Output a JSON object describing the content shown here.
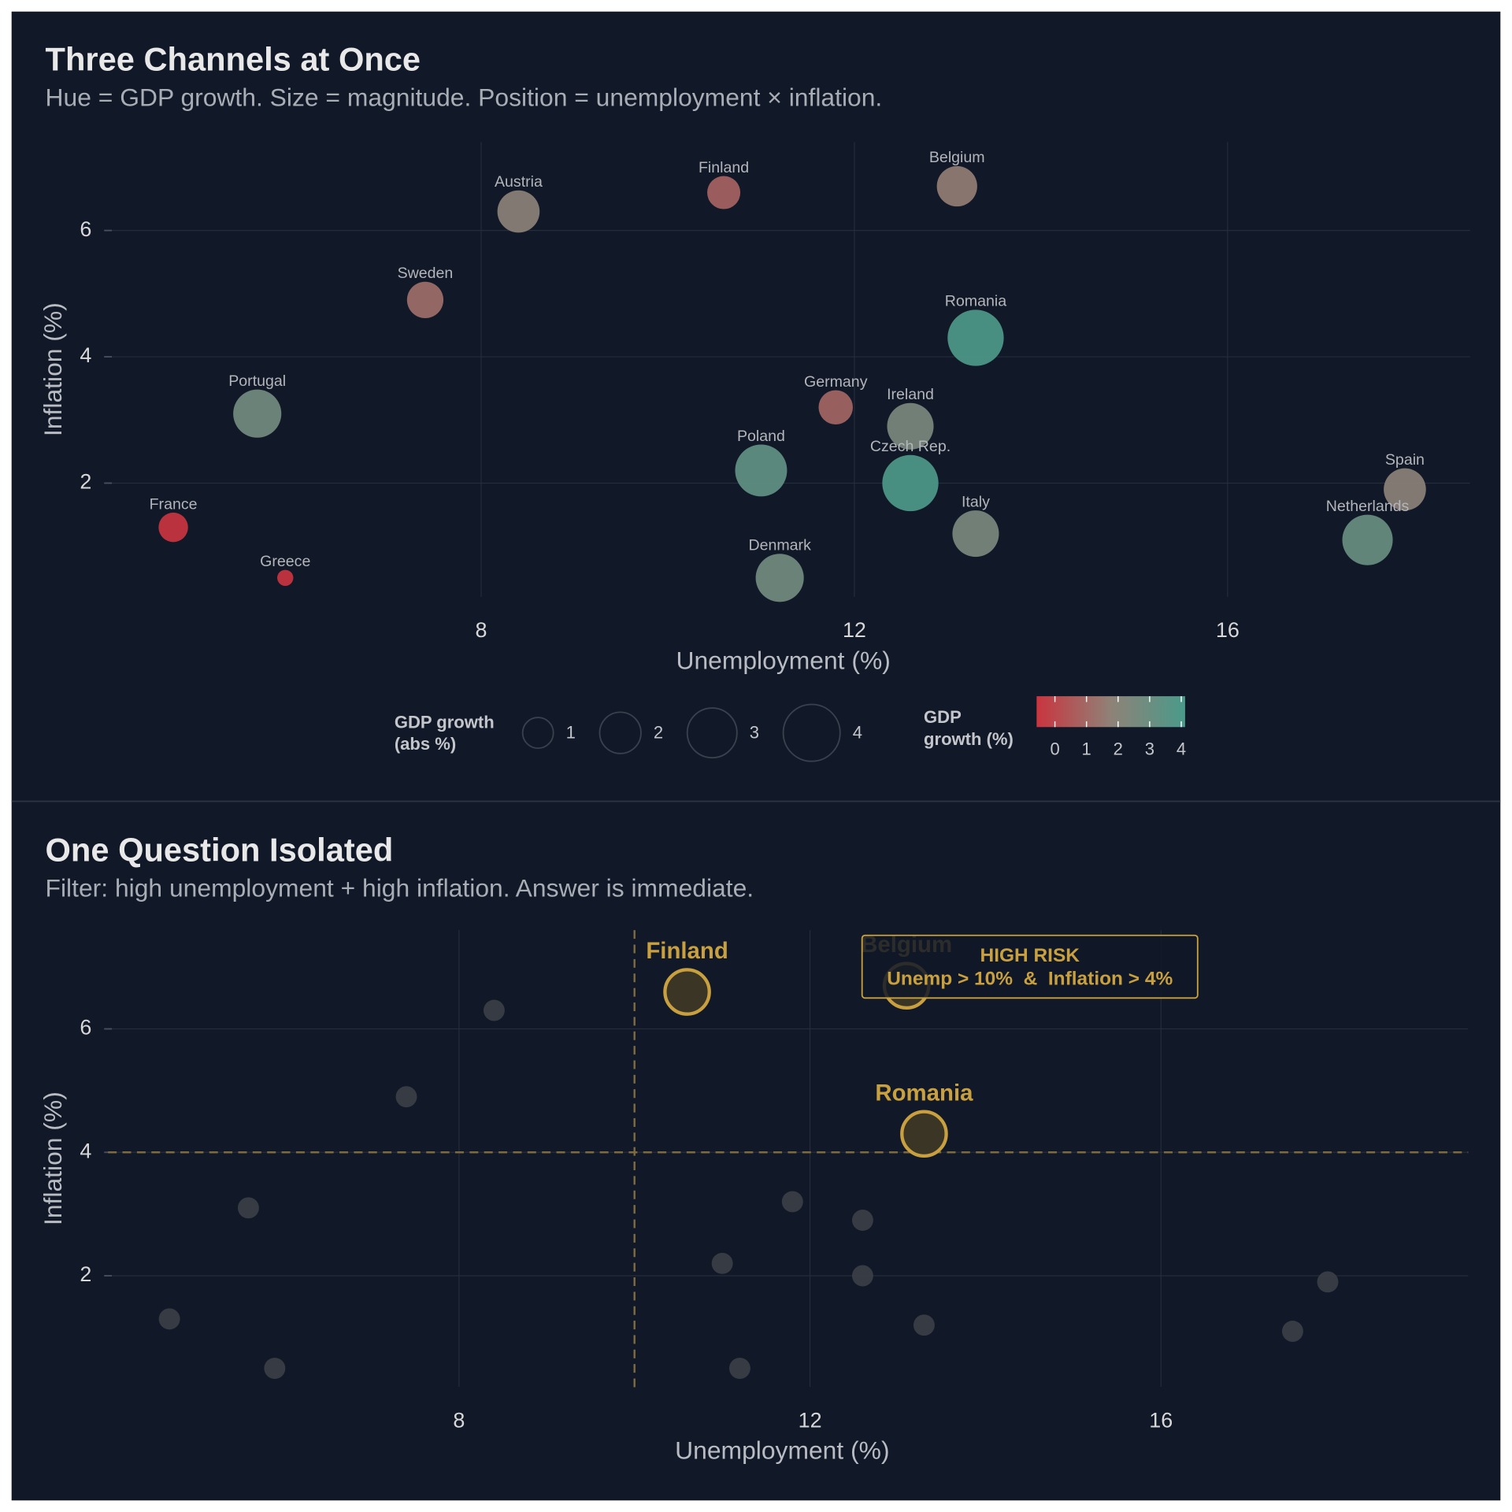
{
  "chart_data": [
    {
      "type": "bubble",
      "title": "Three Channels at Once",
      "subtitle": "Hue = GDP growth. Size = magnitude. Position = unemployment × inflation.",
      "xlabel": "Unemployment (%)",
      "ylabel": "Inflation (%)",
      "labels": [
        "France",
        "Greece",
        "Portugal",
        "Sweden",
        "Austria",
        "Finland",
        "Belgium",
        "Romania",
        "Germany",
        "Ireland",
        "Poland",
        "Czech Rep.",
        "Italy",
        "Denmark",
        "Spain",
        "Netherlands"
      ],
      "x": [
        4.7,
        5.9,
        5.6,
        7.4,
        8.4,
        10.6,
        13.1,
        13.3,
        11.8,
        12.6,
        11.0,
        12.6,
        13.3,
        11.2,
        17.9,
        17.5
      ],
      "y": [
        1.3,
        0.5,
        3.1,
        4.9,
        6.3,
        6.6,
        6.7,
        4.3,
        3.2,
        2.9,
        2.2,
        2.0,
        1.2,
        0.5,
        1.9,
        1.1
      ],
      "gdp_growth": [
        -0.9,
        -0.1,
        2.8,
        1.5,
        2.1,
        1.2,
        1.9,
        3.9,
        1.3,
        2.6,
        3.3,
        3.9,
        2.6,
        2.8,
        2.1,
        3.1
      ],
      "xlim": [
        4,
        18.6
      ],
      "ylim": [
        0.2,
        7.4
      ],
      "xticks": [
        8,
        12,
        16
      ],
      "yticks": [
        2,
        4,
        6
      ],
      "grid": true,
      "size_legend": {
        "title": "GDP growth\n(abs %)",
        "values": [
          1,
          2,
          3,
          4
        ]
      },
      "color_scale": {
        "title": "GDP\ngrowth (%)",
        "colors": [
          "#c9353f",
          "#8f8277",
          "#4a9a8a"
        ],
        "ticks": [
          0,
          1,
          2,
          3,
          4
        ]
      }
    },
    {
      "type": "scatter",
      "title": "One Question Isolated",
      "subtitle": "Filter: high unemployment + high inflation. Answer is immediate.",
      "xlabel": "Unemployment (%)",
      "ylabel": "Inflation (%)",
      "x": [
        4.7,
        5.9,
        5.6,
        7.4,
        8.4,
        11.8,
        12.6,
        11.0,
        12.6,
        13.3,
        11.2,
        17.9,
        17.5
      ],
      "y": [
        1.3,
        0.5,
        3.1,
        4.9,
        6.3,
        3.2,
        2.9,
        2.2,
        2.0,
        1.2,
        0.5,
        1.9,
        1.1
      ],
      "color": "#3a3d45",
      "highlight": {
        "labels": [
          "Finland",
          "Belgium",
          "Romania"
        ],
        "x": [
          10.6,
          13.1,
          13.3
        ],
        "y": [
          6.6,
          6.7,
          4.3
        ],
        "color": "#c9a03f"
      },
      "thresholds": {
        "x": 10,
        "y": 4
      },
      "annotation": [
        "HIGH RISK",
        "Unemp > 10%  &  Inflation > 4%"
      ],
      "xlim": [
        4,
        19.5
      ],
      "ylim": [
        0.2,
        7.6
      ],
      "xticks": [
        8,
        12,
        16
      ],
      "yticks": [
        2,
        4,
        6
      ],
      "grid": true
    }
  ]
}
